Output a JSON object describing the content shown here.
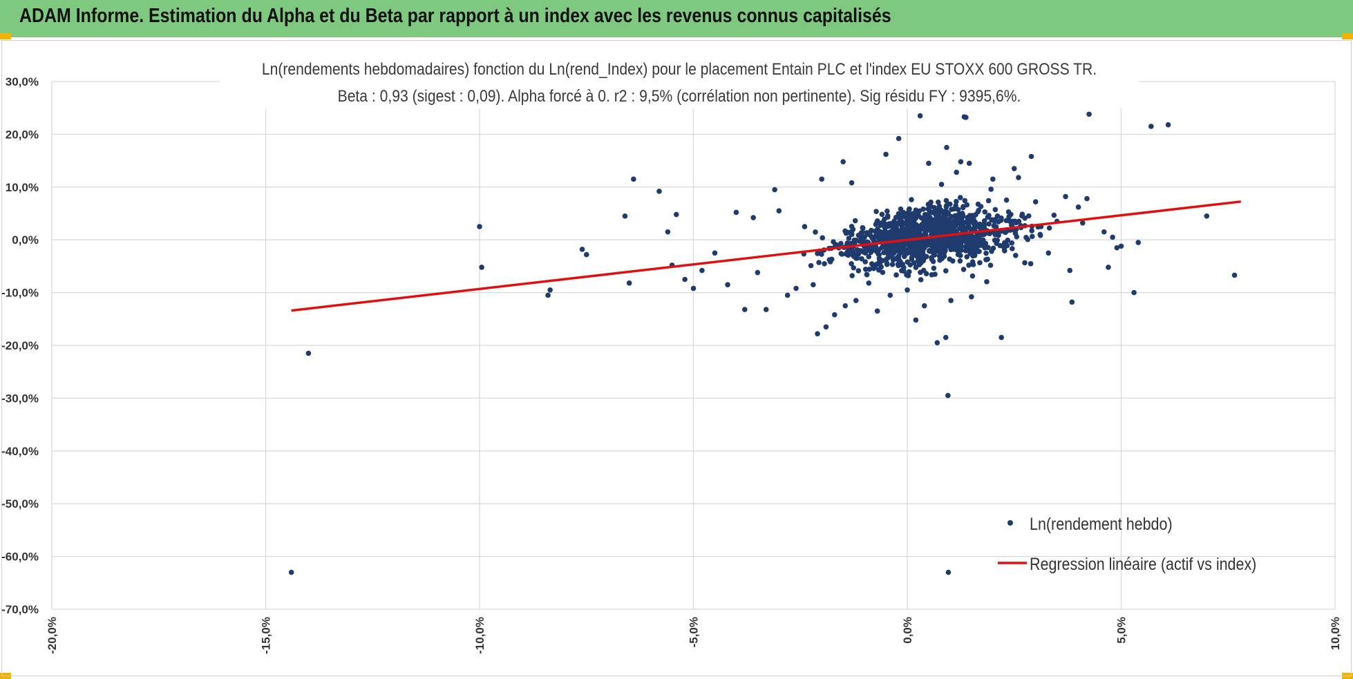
{
  "header": {
    "title": "ADAM Informe. Estimation du Alpha et du Beta par rapport à un index avec les revenus connus capitalisés"
  },
  "colors": {
    "header_bg": "#7fc87f",
    "accent": "#f0b400",
    "points": "#1f3b6e",
    "regression": "#e01010",
    "grid": "#d9d9d9"
  },
  "chart_data": {
    "type": "scatter",
    "title": "Ln(rendements hebdomadaires) fonction du Ln(rend_Index) pour le placement Entain PLC et l'index EU STOXX 600 GROSS TR.",
    "subtitle": "Beta : 0,93 (sigest : 0,09).  Alpha forcé à 0. r2 : 9,5% (corrélation non pertinente). Sig résidu FY : 9395,6%.",
    "xlim": [
      -0.2,
      0.1
    ],
    "ylim": [
      -0.7,
      0.3
    ],
    "x_ticks": [
      "-20,0%",
      "-15,0%",
      "-10,0%",
      "-5,0%",
      "0,0%",
      "5,0%",
      "10,0%"
    ],
    "y_ticks": [
      "30,0%",
      "20,0%",
      "10,0%",
      "0,0%",
      "-10,0%",
      "-20,0%",
      "-30,0%",
      "-40,0%",
      "-50,0%",
      "-60,0%",
      "-70,0%"
    ],
    "grid": true,
    "legend_position": "bottom-right",
    "series": [
      {
        "name": "Ln(rendement hebdo)",
        "type": "scatter",
        "points": [
          [
            -0.144,
            -0.63
          ],
          [
            -0.14,
            -0.215
          ],
          [
            -0.1,
            0.025
          ],
          [
            -0.0995,
            -0.052
          ],
          [
            -0.084,
            -0.105
          ],
          [
            -0.0835,
            -0.095
          ],
          [
            -0.076,
            -0.018
          ],
          [
            -0.075,
            -0.028
          ],
          [
            -0.066,
            0.045
          ],
          [
            -0.065,
            -0.082
          ],
          [
            -0.064,
            0.115
          ],
          [
            -0.058,
            0.092
          ],
          [
            -0.056,
            0.015
          ],
          [
            -0.055,
            -0.048
          ],
          [
            -0.054,
            0.048
          ],
          [
            -0.052,
            -0.075
          ],
          [
            -0.05,
            -0.092
          ],
          [
            -0.048,
            -0.058
          ],
          [
            -0.045,
            -0.025
          ],
          [
            -0.042,
            -0.085
          ],
          [
            -0.04,
            0.052
          ],
          [
            -0.038,
            -0.132
          ],
          [
            -0.036,
            0.042
          ],
          [
            -0.035,
            -0.062
          ],
          [
            -0.033,
            -0.132
          ],
          [
            -0.031,
            0.095
          ],
          [
            -0.03,
            0.055
          ],
          [
            -0.028,
            -0.105
          ],
          [
            -0.026,
            -0.092
          ],
          [
            -0.024,
            0.025
          ],
          [
            -0.022,
            -0.085
          ],
          [
            -0.021,
            -0.178
          ],
          [
            -0.02,
            0.115
          ],
          [
            -0.019,
            -0.165
          ],
          [
            -0.017,
            -0.142
          ],
          [
            -0.015,
            0.148
          ],
          [
            -0.0145,
            -0.125
          ],
          [
            -0.013,
            0.108
          ],
          [
            -0.012,
            -0.115
          ],
          [
            -0.009,
            -0.082
          ],
          [
            -0.007,
            -0.135
          ],
          [
            -0.005,
            0.162
          ],
          [
            -0.004,
            -0.105
          ],
          [
            -0.002,
            0.192
          ],
          [
            0.0,
            -0.095
          ],
          [
            0.002,
            -0.152
          ],
          [
            0.003,
            0.235
          ],
          [
            0.004,
            -0.125
          ],
          [
            0.005,
            0.145
          ],
          [
            0.007,
            -0.195
          ],
          [
            0.008,
            0.105
          ],
          [
            0.009,
            -0.185
          ],
          [
            0.0092,
            0.175
          ],
          [
            0.0095,
            -0.295
          ],
          [
            0.0096,
            -0.63
          ],
          [
            0.0102,
            -0.115
          ],
          [
            0.0115,
            0.128
          ],
          [
            0.0125,
            0.148
          ],
          [
            0.0133,
            0.233
          ],
          [
            0.0137,
            0.232
          ],
          [
            0.0145,
            0.145
          ],
          [
            0.015,
            -0.108
          ],
          [
            0.02,
            0.115
          ],
          [
            0.022,
            -0.185
          ],
          [
            0.025,
            0.135
          ],
          [
            0.026,
            0.118
          ],
          [
            0.029,
            0.158
          ],
          [
            0.03,
            0.072
          ],
          [
            0.033,
            -0.025
          ],
          [
            0.035,
            0.035
          ],
          [
            0.037,
            0.082
          ],
          [
            0.038,
            -0.058
          ],
          [
            0.0385,
            -0.118
          ],
          [
            0.04,
            0.062
          ],
          [
            0.041,
            0.032
          ],
          [
            0.042,
            0.078
          ],
          [
            0.0425,
            0.238
          ],
          [
            0.046,
            0.015
          ],
          [
            0.047,
            -0.052
          ],
          [
            0.048,
            0.005
          ],
          [
            0.049,
            -0.015
          ],
          [
            0.05,
            -0.012
          ],
          [
            0.053,
            -0.1
          ],
          [
            0.054,
            -0.005
          ],
          [
            0.057,
            0.215
          ],
          [
            0.061,
            0.218
          ],
          [
            0.07,
            0.045
          ],
          [
            0.0765,
            -0.067
          ]
        ]
      },
      {
        "name": "Regression linéaire (actif vs index)",
        "type": "line",
        "points": [
          [
            -0.144,
            -0.134
          ],
          [
            0.078,
            0.0725
          ]
        ]
      }
    ]
  }
}
